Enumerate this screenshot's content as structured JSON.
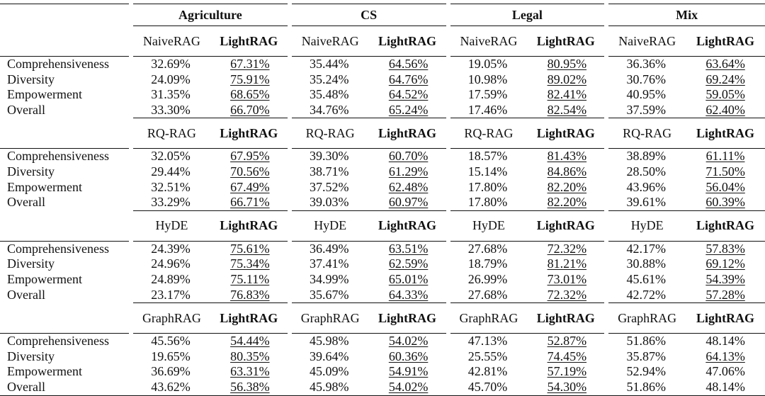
{
  "table": {
    "datasets": [
      "Agriculture",
      "CS",
      "Legal",
      "Mix"
    ],
    "blocks": [
      {
        "baseline": "NaiveRAG",
        "method": "LightRAG",
        "rows": [
          {
            "metric": "Comprehensiveness",
            "cells": [
              "32.69%",
              "67.31%",
              "35.44%",
              "64.56%",
              "19.05%",
              "80.95%",
              "36.36%",
              "63.64%"
            ],
            "underlined": [
              1,
              3,
              5,
              7
            ]
          },
          {
            "metric": "Diversity",
            "cells": [
              "24.09%",
              "75.91%",
              "35.24%",
              "64.76%",
              "10.98%",
              "89.02%",
              "30.76%",
              "69.24%"
            ],
            "underlined": [
              1,
              3,
              5,
              7
            ]
          },
          {
            "metric": "Empowerment",
            "cells": [
              "31.35%",
              "68.65%",
              "35.48%",
              "64.52%",
              "17.59%",
              "82.41%",
              "40.95%",
              "59.05%"
            ],
            "underlined": [
              1,
              3,
              5,
              7
            ]
          },
          {
            "metric": "Overall",
            "cells": [
              "33.30%",
              "66.70%",
              "34.76%",
              "65.24%",
              "17.46%",
              "82.54%",
              "37.59%",
              "62.40%"
            ],
            "underlined": [
              1,
              3,
              5,
              7
            ]
          }
        ]
      },
      {
        "baseline": "RQ-RAG",
        "method": "LightRAG",
        "rows": [
          {
            "metric": "Comprehensiveness",
            "cells": [
              "32.05%",
              "67.95%",
              "39.30%",
              "60.70%",
              "18.57%",
              "81.43%",
              "38.89%",
              "61.11%"
            ],
            "underlined": [
              1,
              3,
              5,
              7
            ]
          },
          {
            "metric": "Diversity",
            "cells": [
              "29.44%",
              "70.56%",
              "38.71%",
              "61.29%",
              "15.14%",
              "84.86%",
              "28.50%",
              "71.50%"
            ],
            "underlined": [
              1,
              3,
              5,
              7
            ]
          },
          {
            "metric": "Empowerment",
            "cells": [
              "32.51%",
              "67.49%",
              "37.52%",
              "62.48%",
              "17.80%",
              "82.20%",
              "43.96%",
              "56.04%"
            ],
            "underlined": [
              1,
              3,
              5,
              7
            ]
          },
          {
            "metric": "Overall",
            "cells": [
              "33.29%",
              "66.71%",
              "39.03%",
              "60.97%",
              "17.80%",
              "82.20%",
              "39.61%",
              "60.39%"
            ],
            "underlined": [
              1,
              3,
              5,
              7
            ]
          }
        ]
      },
      {
        "baseline": "HyDE",
        "method": "LightRAG",
        "rows": [
          {
            "metric": "Comprehensiveness",
            "cells": [
              "24.39%",
              "75.61%",
              "36.49%",
              "63.51%",
              "27.68%",
              "72.32%",
              "42.17%",
              "57.83%"
            ],
            "underlined": [
              1,
              3,
              5,
              7
            ]
          },
          {
            "metric": "Diversity",
            "cells": [
              "24.96%",
              "75.34%",
              "37.41%",
              "62.59%",
              "18.79%",
              "81.21%",
              "30.88%",
              "69.12%"
            ],
            "underlined": [
              1,
              3,
              5,
              7
            ]
          },
          {
            "metric": "Empowerment",
            "cells": [
              "24.89%",
              "75.11%",
              "34.99%",
              "65.01%",
              "26.99%",
              "73.01%",
              "45.61%",
              "54.39%"
            ],
            "underlined": [
              1,
              3,
              5,
              7
            ]
          },
          {
            "metric": "Overall",
            "cells": [
              "23.17%",
              "76.83%",
              "35.67%",
              "64.33%",
              "27.68%",
              "72.32%",
              "42.72%",
              "57.28%"
            ],
            "underlined": [
              1,
              3,
              5,
              7
            ]
          }
        ]
      },
      {
        "baseline": "GraphRAG",
        "method": "LightRAG",
        "rows": [
          {
            "metric": "Comprehensiveness",
            "cells": [
              "45.56%",
              "54.44%",
              "45.98%",
              "54.02%",
              "47.13%",
              "52.87%",
              "51.86%",
              "48.14%"
            ],
            "underlined": [
              1,
              3,
              5
            ]
          },
          {
            "metric": "Diversity",
            "cells": [
              "19.65%",
              "80.35%",
              "39.64%",
              "60.36%",
              "25.55%",
              "74.45%",
              "35.87%",
              "64.13%"
            ],
            "underlined": [
              1,
              3,
              5,
              7
            ]
          },
          {
            "metric": "Empowerment",
            "cells": [
              "36.69%",
              "63.31%",
              "45.09%",
              "54.91%",
              "42.81%",
              "57.19%",
              "52.94%",
              "47.06%"
            ],
            "underlined": [
              1,
              3,
              5
            ]
          },
          {
            "metric": "Overall",
            "cells": [
              "43.62%",
              "56.38%",
              "45.98%",
              "54.02%",
              "45.70%",
              "54.30%",
              "51.86%",
              "48.14%"
            ],
            "underlined": [
              1,
              3,
              5
            ]
          }
        ]
      }
    ]
  }
}
